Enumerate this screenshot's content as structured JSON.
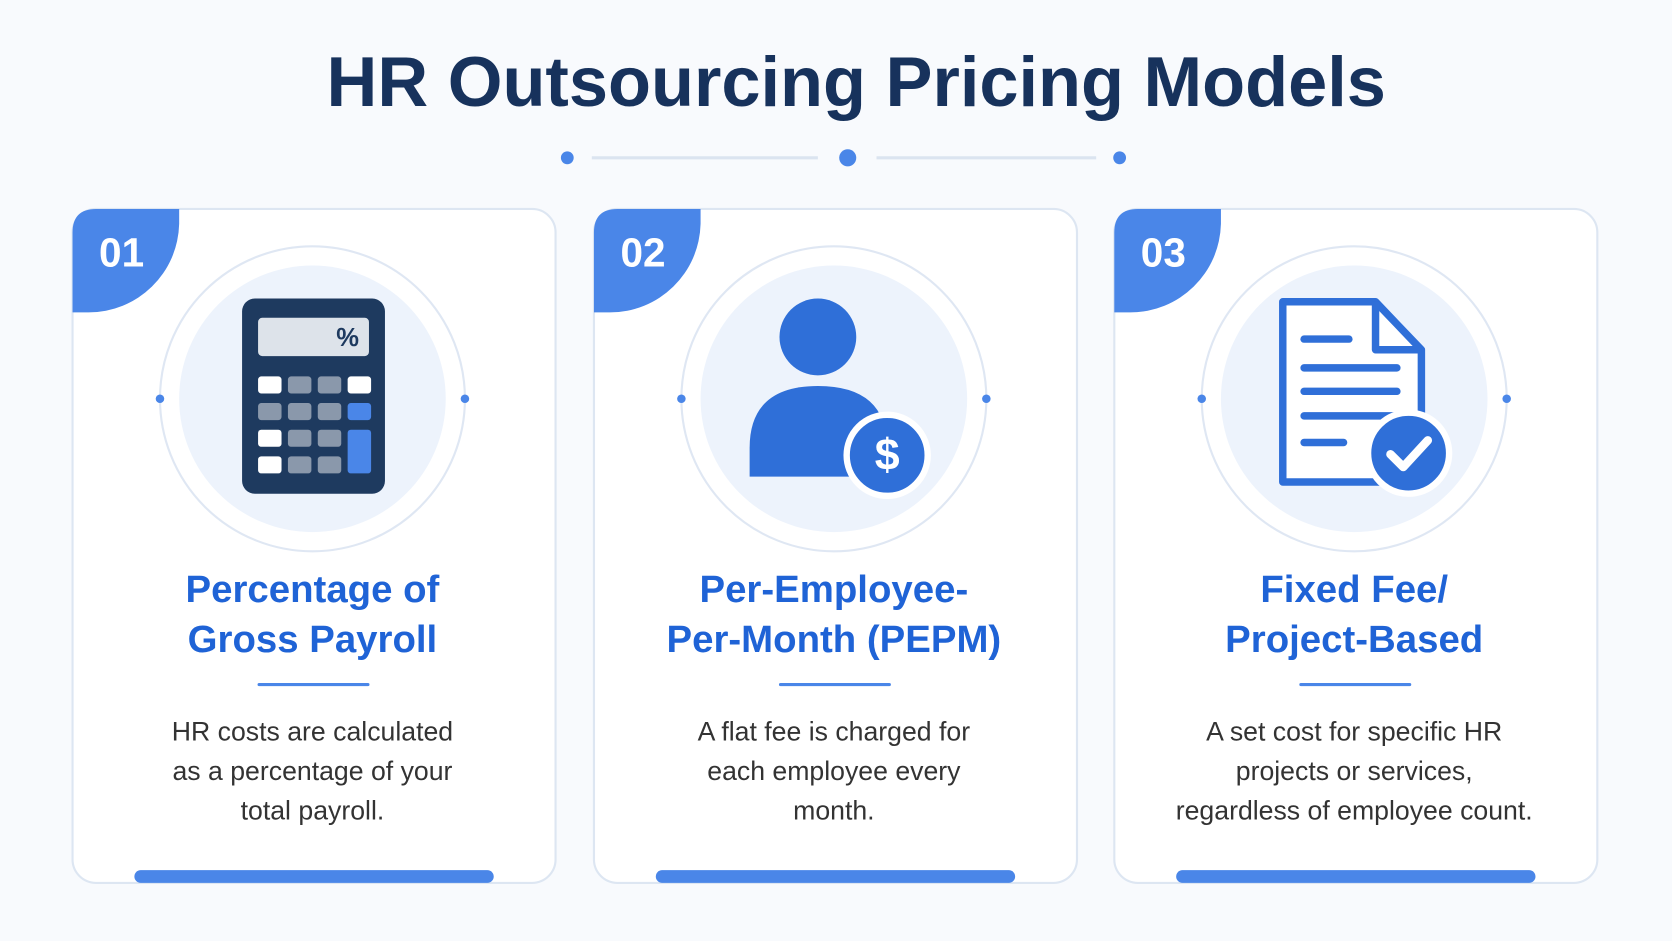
{
  "title": "HR Outsourcing Pricing Models",
  "cards": [
    {
      "number": "01",
      "icon_text": "%",
      "heading": [
        "Percentage of",
        "Gross Payroll"
      ],
      "description": [
        "HR costs are calculated",
        "as a percentage of your",
        "total payroll."
      ]
    },
    {
      "number": "02",
      "icon_text": "$",
      "heading": [
        "Per-Employee-",
        "Per-Month (PEPM)"
      ],
      "description": [
        "A flat fee is charged for",
        "each employee every",
        "month."
      ]
    },
    {
      "number": "03",
      "heading": [
        "Fixed Fee/",
        "Project-Based"
      ],
      "description": [
        "A set cost for specific HR",
        "projects or services,",
        "regardless of employee count."
      ]
    }
  ]
}
